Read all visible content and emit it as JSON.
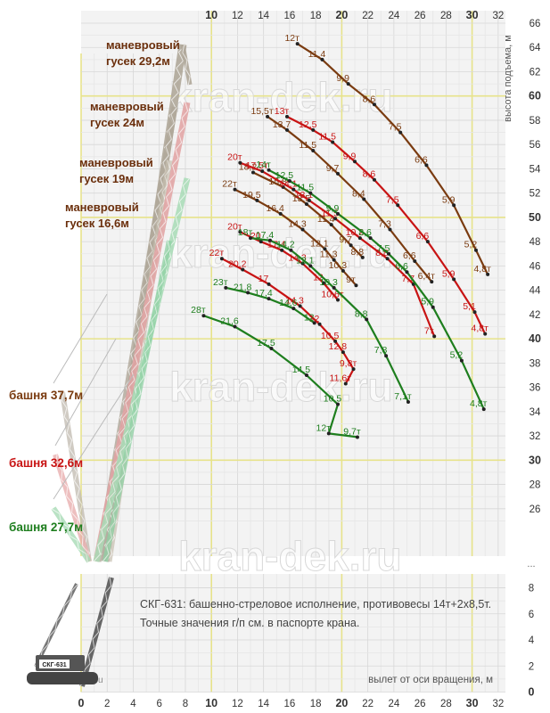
{
  "chart_data": {
    "type": "line",
    "title": "",
    "note_line1": "СКГ-631: башенно-стреловое исполнение, противовесы 14т+2х8,5т.",
    "note_line2": "Точные значения г/п см. в паспорте крана.",
    "xlabel": "вылет от оси вращения, м",
    "ylabel": "высота подъема, м",
    "watermark": "kran-dek.ru",
    "crane_plate": "СКГ-631",
    "x_ticks_top": [
      "10",
      "12",
      "14",
      "16",
      "18",
      "20",
      "22",
      "24",
      "26",
      "28",
      "30",
      "32"
    ],
    "x_ticks_bottom": [
      "0",
      "2",
      "4",
      "6",
      "8",
      "10",
      "12",
      "14",
      "16",
      "18",
      "20",
      "22",
      "24",
      "26",
      "28",
      "30",
      "32"
    ],
    "y_ticks_right": [
      "66",
      "64",
      "62",
      "60",
      "58",
      "56",
      "54",
      "52",
      "50",
      "48",
      "46",
      "44",
      "42",
      "40",
      "38",
      "36",
      "34",
      "32",
      "30",
      "28",
      "26"
    ],
    "y_ticks_lower": [
      "8",
      "6",
      "4",
      "2",
      "0"
    ],
    "y_break_mark": "...",
    "bold_ticks": [
      "10",
      "20",
      "30",
      "40",
      "50",
      "60",
      "0"
    ],
    "xlim": [
      0,
      34
    ],
    "ylim_upper": [
      24.5,
      66
    ],
    "ylim_lower": [
      0,
      9
    ],
    "colors": {
      "brown": "#7a3b10",
      "red": "#c81414",
      "green": "#1e7e1e"
    },
    "configs": [
      {
        "tower": "башня 37,7м",
        "color": "brown",
        "jib": "маневровый гусек 29,2м"
      },
      {
        "tower": "",
        "color": "brown",
        "jib": "маневровый гусек 24м"
      },
      {
        "tower": "башня 32,6м",
        "color": "red",
        "jib": "маневровый гусек 19м"
      },
      {
        "tower": "башня 27,7м",
        "color": "green",
        "jib": "маневровый гусек 16,6м"
      }
    ],
    "series": [
      {
        "color": "brown",
        "points": [
          {
            "x": 16.6,
            "y": 64.3,
            "label": "12т"
          },
          {
            "x": 18.5,
            "y": 63.0,
            "label": "11,4"
          },
          {
            "x": 20.5,
            "y": 61.0,
            "label": "9,9"
          },
          {
            "x": 22.5,
            "y": 59.3,
            "label": "8,6"
          },
          {
            "x": 24.5,
            "y": 57.0,
            "label": "7,5"
          },
          {
            "x": 26.5,
            "y": 54.3,
            "label": "6,6"
          },
          {
            "x": 28.6,
            "y": 51.0,
            "label": "5,9"
          },
          {
            "x": 30.3,
            "y": 47.3,
            "label": "5,2"
          },
          {
            "x": 31.2,
            "y": 45.3,
            "label": "4,8т"
          }
        ]
      },
      {
        "color": "brown",
        "points": [
          {
            "x": 14.3,
            "y": 58.3,
            "label": "15,5т"
          },
          {
            "x": 15.8,
            "y": 57.2,
            "label": "13,7"
          },
          {
            "x": 17.8,
            "y": 55.5,
            "label": "11,5"
          },
          {
            "x": 19.7,
            "y": 53.6,
            "label": "9,7"
          },
          {
            "x": 21.7,
            "y": 51.5,
            "label": "8,4"
          },
          {
            "x": 23.7,
            "y": 49.0,
            "label": "7,3"
          },
          {
            "x": 25.6,
            "y": 46.4,
            "label": "6,6"
          },
          {
            "x": 26.9,
            "y": 44.7,
            "label": "6,4т"
          }
        ]
      },
      {
        "color": "brown",
        "points": [
          {
            "x": 11.8,
            "y": 52.3,
            "label": "22т"
          },
          {
            "x": 13.5,
            "y": 51.4,
            "label": "19,5"
          },
          {
            "x": 15.3,
            "y": 50.3,
            "label": "16,4"
          },
          {
            "x": 17.0,
            "y": 49.0,
            "label": "14,3"
          },
          {
            "x": 18.7,
            "y": 47.4,
            "label": "12,1"
          },
          {
            "x": 19.4,
            "y": 46.5,
            "label": "11,3"
          },
          {
            "x": 20.1,
            "y": 45.6,
            "label": "10,3"
          },
          {
            "x": 21.1,
            "y": 44.4,
            "label": "9т"
          }
        ]
      },
      {
        "color": "brown",
        "points": [
          {
            "x": 13.2,
            "y": 53.7,
            "label": "18,2"
          },
          {
            "x": 15.5,
            "y": 52.5,
            "label": "15,8"
          },
          {
            "x": 17.3,
            "y": 51.1,
            "label": "13,5"
          },
          {
            "x": 19.2,
            "y": 49.4,
            "label": "11,4"
          },
          {
            "x": 20.7,
            "y": 47.7,
            "label": "9,7"
          },
          {
            "x": 21.6,
            "y": 46.7,
            "label": "8,8"
          }
        ]
      },
      {
        "color": "red",
        "points": [
          {
            "x": 15.8,
            "y": 58.3,
            "label": "13т"
          },
          {
            "x": 17.8,
            "y": 57.2,
            "label": "12,5"
          },
          {
            "x": 19.3,
            "y": 56.2,
            "label": "11,5"
          },
          {
            "x": 21.0,
            "y": 54.6,
            "label": "9,9"
          },
          {
            "x": 22.5,
            "y": 53.1,
            "label": "8,6"
          },
          {
            "x": 24.3,
            "y": 51.0,
            "label": "7,5"
          },
          {
            "x": 26.6,
            "y": 48.0,
            "label": "6,6"
          },
          {
            "x": 28.6,
            "y": 44.9,
            "label": "5,9"
          },
          {
            "x": 30.2,
            "y": 42.2,
            "label": "5,1"
          },
          {
            "x": 31.0,
            "y": 40.4,
            "label": "4,8т"
          }
        ]
      },
      {
        "color": "red",
        "points": [
          {
            "x": 12.2,
            "y": 54.5,
            "label": "20т"
          },
          {
            "x": 13.9,
            "y": 53.8,
            "label": "17,5т"
          },
          {
            "x": 16.3,
            "y": 52.3,
            "label": "14,1"
          },
          {
            "x": 17.5,
            "y": 51.4,
            "label": "13,1"
          },
          {
            "x": 19.5,
            "y": 49.9,
            "label": "11,5"
          },
          {
            "x": 21.4,
            "y": 48.3,
            "label": "10,2"
          },
          {
            "x": 23.5,
            "y": 46.6,
            "label": "8,8"
          },
          {
            "x": 25.5,
            "y": 44.5,
            "label": "7,7"
          },
          {
            "x": 27.1,
            "y": 40.2,
            "label": "7т"
          }
        ]
      },
      {
        "color": "red",
        "points": [
          {
            "x": 12.2,
            "y": 48.8,
            "label": "20т"
          },
          {
            "x": 13.8,
            "y": 48.0,
            "label": "20"
          },
          {
            "x": 15.4,
            "y": 47.3,
            "label": "17,4"
          },
          {
            "x": 17.0,
            "y": 46.2,
            "label": "14,3"
          },
          {
            "x": 18.6,
            "y": 44.6,
            "label": "12"
          },
          {
            "x": 19.7,
            "y": 43.2,
            "label": "10,6т"
          }
        ]
      },
      {
        "color": "red",
        "points": [
          {
            "x": 10.8,
            "y": 46.6,
            "label": "22т"
          },
          {
            "x": 12.4,
            "y": 45.7,
            "label": "20,2"
          },
          {
            "x": 14.4,
            "y": 44.5,
            "label": "17"
          },
          {
            "x": 16.8,
            "y": 42.7,
            "label": "14,3"
          },
          {
            "x": 18.3,
            "y": 41.2,
            "label": "12"
          },
          {
            "x": 19.5,
            "y": 39.8,
            "label": "10,5"
          },
          {
            "x": 20.1,
            "y": 38.9,
            "label": "12,8"
          },
          {
            "x": 20.9,
            "y": 37.5,
            "label": "9,8т"
          },
          {
            "x": 20.3,
            "y": 36.3,
            "label": "11,6т"
          }
        ]
      },
      {
        "color": "green",
        "points": [
          {
            "x": 14.4,
            "y": 53.9,
            "label": "14т"
          },
          {
            "x": 16.0,
            "y": 53.0,
            "label": "12,5"
          },
          {
            "x": 17.6,
            "y": 52.0,
            "label": "11,5"
          },
          {
            "x": 19.7,
            "y": 50.3,
            "label": "9,9"
          },
          {
            "x": 22.2,
            "y": 48.3,
            "label": "8,6"
          },
          {
            "x": 23.6,
            "y": 47.0,
            "label": "7,5"
          },
          {
            "x": 25.0,
            "y": 45.5,
            "label": "6,6"
          },
          {
            "x": 27.0,
            "y": 42.6,
            "label": "5,9"
          },
          {
            "x": 29.2,
            "y": 38.2,
            "label": "5,2"
          },
          {
            "x": 30.9,
            "y": 34.2,
            "label": "4,8т"
          }
        ]
      },
      {
        "color": "green",
        "points": [
          {
            "x": 13.0,
            "y": 48.3,
            "label": "18т"
          },
          {
            "x": 14.5,
            "y": 48.1,
            "label": "17,4"
          },
          {
            "x": 16.1,
            "y": 47.3,
            "label": "14,2"
          },
          {
            "x": 17.6,
            "y": 46.0,
            "label": "12,1"
          },
          {
            "x": 19.4,
            "y": 44.2,
            "label": "10,3"
          },
          {
            "x": 21.9,
            "y": 41.6,
            "label": "8,8"
          },
          {
            "x": 23.4,
            "y": 38.6,
            "label": "7,8"
          },
          {
            "x": 25.1,
            "y": 34.8,
            "label": "7,1т"
          }
        ]
      },
      {
        "color": "green",
        "points": [
          {
            "x": 11.1,
            "y": 44.2,
            "label": "23т"
          },
          {
            "x": 12.8,
            "y": 43.8,
            "label": "21,8"
          },
          {
            "x": 14.4,
            "y": 43.3,
            "label": "17,4"
          },
          {
            "x": 16.3,
            "y": 42.5,
            "label": "14,6"
          },
          {
            "x": 17.9,
            "y": 41.3,
            "label": "12"
          }
        ]
      },
      {
        "color": "green",
        "points": [
          {
            "x": 9.4,
            "y": 41.9,
            "label": "28т"
          },
          {
            "x": 11.8,
            "y": 41.0,
            "label": "21,6"
          },
          {
            "x": 14.6,
            "y": 39.2,
            "label": "17,5"
          },
          {
            "x": 17.3,
            "y": 37.0,
            "label": "14,5"
          },
          {
            "x": 19.7,
            "y": 34.6,
            "label": "10,5"
          },
          {
            "x": 19.0,
            "y": 32.2,
            "label": "12т"
          },
          {
            "x": 21.2,
            "y": 31.9,
            "label": "9,7т"
          }
        ]
      }
    ]
  }
}
